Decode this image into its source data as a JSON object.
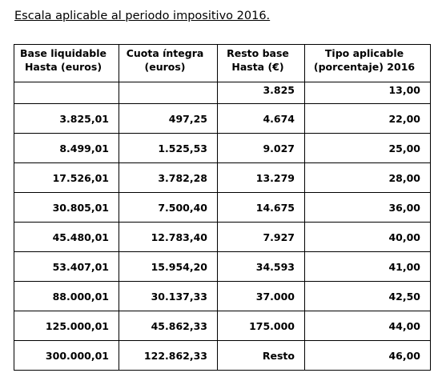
{
  "title": "Escala aplicable al periodo impositivo 2016.",
  "table": {
    "headers": [
      [
        "Base liquidable",
        "Hasta (euros)"
      ],
      [
        "Cuota íntegra",
        "(euros)"
      ],
      [
        "Resto base",
        "Hasta (€)"
      ],
      [
        "Tipo aplicable",
        "(porcentaje) 2016"
      ]
    ],
    "rows": [
      [
        null,
        null,
        "3.825",
        "13,00"
      ],
      [
        "3.825,01",
        "497,25",
        "4.674",
        "22,00"
      ],
      [
        "8.499,01",
        "1.525,53",
        "9.027",
        "25,00"
      ],
      [
        "17.526,01",
        "3.782,28",
        "13.279",
        "28,00"
      ],
      [
        "30.805,01",
        "7.500,40",
        "14.675",
        "36,00"
      ],
      [
        "45.480,01",
        "12.783,40",
        "7.927",
        "40,00"
      ],
      [
        "53.407,01",
        "15.954,20",
        "34.593",
        "41,00"
      ],
      [
        "88.000,01",
        "30.137,33",
        "37.000",
        "42,50"
      ],
      [
        "125.000,01",
        "45.862,33",
        "175.000",
        "44,00"
      ],
      [
        "300.000,01",
        "122.862,33",
        "Resto",
        "46,00"
      ]
    ]
  }
}
